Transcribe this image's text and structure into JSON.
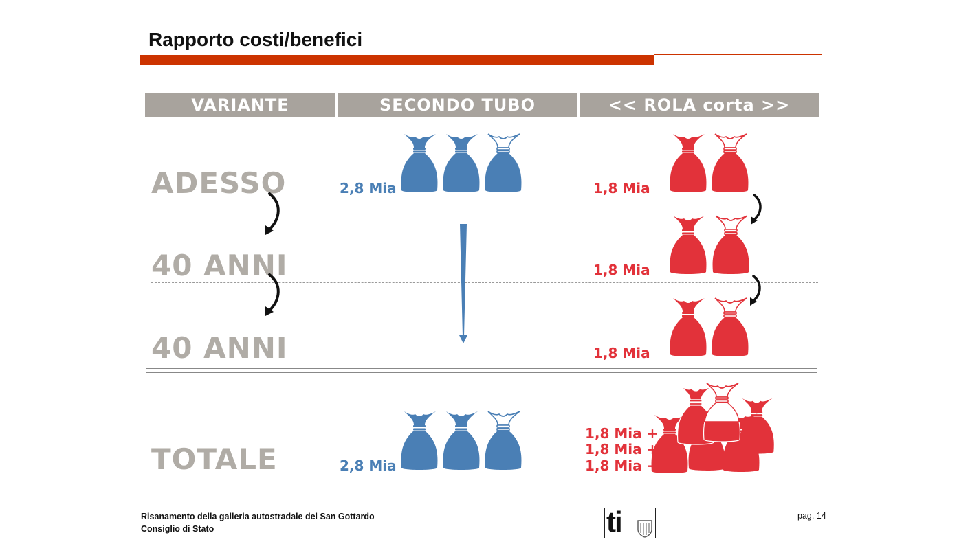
{
  "slide": {
    "title": "Rapporto costi/benefici",
    "headers": [
      "VARIANTE",
      "SECONDO TUBO",
      "<< ROLA corta >>"
    ],
    "rows": [
      "ADESSO",
      "40 ANNI",
      "40 ANNI",
      "TOTALE"
    ],
    "secondo_tubo": {
      "adesso_amount": "2,8 Mia",
      "totale_amount": "2,8 Mia"
    },
    "rola": {
      "adesso_amount": "1,8 Mia",
      "anni1_amount": "1,8 Mia",
      "anni2_amount": "1,8 Mia",
      "totale_lines": [
        "1,8 Mia +",
        "1,8 Mia +",
        "1,8 Mia +"
      ]
    }
  },
  "footer": {
    "line1": "Risanamento della galleria autostradale del San Gottardo",
    "line2": "Consiglio di Stato",
    "page": "pag. 14",
    "logo_text": "ti"
  },
  "colors": {
    "accent": "#cc3300",
    "blue": "#4a7fb5",
    "red": "#e2323a",
    "header_gray": "#a8a39d"
  },
  "icons": [
    "money-bag-icon",
    "curved-arrow-icon",
    "down-arrow-icon",
    "ticino-shield-icon"
  ]
}
